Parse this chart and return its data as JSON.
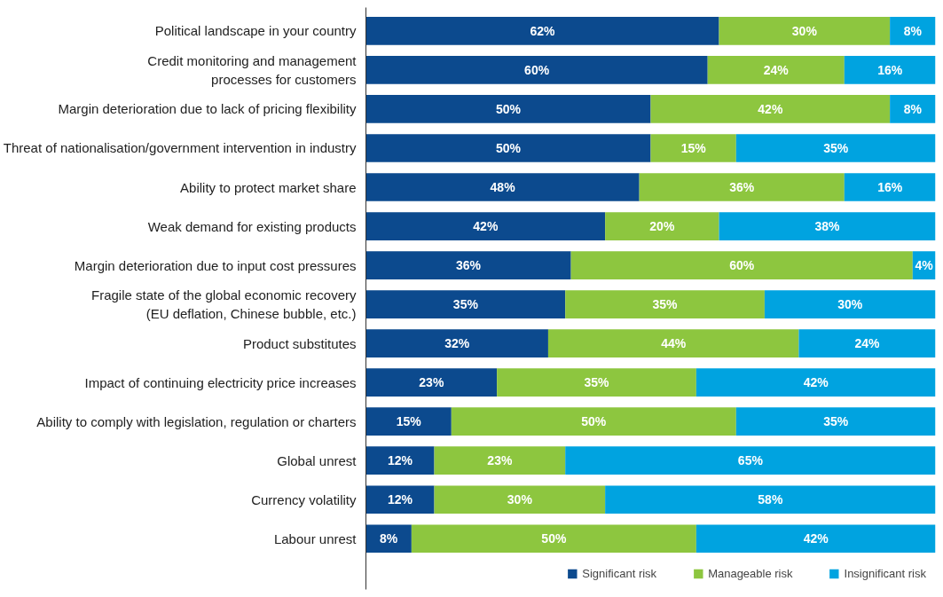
{
  "chart_data": {
    "type": "bar",
    "orientation": "horizontal",
    "stacked": true,
    "legend": "bottom right",
    "grid": false,
    "categories": [
      "Political landscape in your country",
      "Credit monitoring and management\nprocesses for customers",
      "Margin deterioration due to lack of pricing flexibility",
      "Threat of nationalisation/government intervention in industry",
      "Ability to protect market share",
      "Weak demand for existing products",
      "Margin deterioration due to input cost pressures",
      "Fragile state of the global economic recovery\n(EU deflation, Chinese bubble, etc.)",
      "Product substitutes",
      "Impact of continuing electricity price increases",
      "Ability to comply with legislation, regulation or charters",
      "Global unrest",
      "Currency volatility",
      "Labour unrest"
    ],
    "series": [
      {
        "name": "Significant risk",
        "color": "#0c4a8e",
        "values": [
          62,
          60,
          50,
          50,
          48,
          42,
          36,
          35,
          32,
          23,
          15,
          12,
          12,
          8
        ],
        "value_labels": [
          "62%",
          "60%",
          "50%",
          "50%",
          "48%",
          "42%",
          "36%",
          "35%",
          "32%",
          "23%",
          "15%",
          "12%",
          "12%",
          "8%"
        ]
      },
      {
        "name": "Manageable risk",
        "color": "#8dc63f",
        "values": [
          30,
          24,
          42,
          15,
          36,
          20,
          60,
          35,
          44,
          35,
          50,
          23,
          30,
          50
        ],
        "value_labels": [
          "30%",
          "24%",
          "42%",
          "15%",
          "36%",
          "20%",
          "60%",
          "35%",
          "44%",
          "35%",
          "50%",
          "23%",
          "30%",
          "50%"
        ]
      },
      {
        "name": "Insignificant risk",
        "color": "#00a3e0",
        "values": [
          8,
          16,
          8,
          35,
          16,
          38,
          4,
          30,
          24,
          42,
          35,
          65,
          58,
          42
        ],
        "value_labels": [
          "8%",
          "16%",
          "8%",
          "35%",
          "16%",
          "38%",
          "4%",
          "30%",
          "24%",
          "42%",
          "35%",
          "65%",
          "58%",
          "42%"
        ]
      }
    ]
  }
}
